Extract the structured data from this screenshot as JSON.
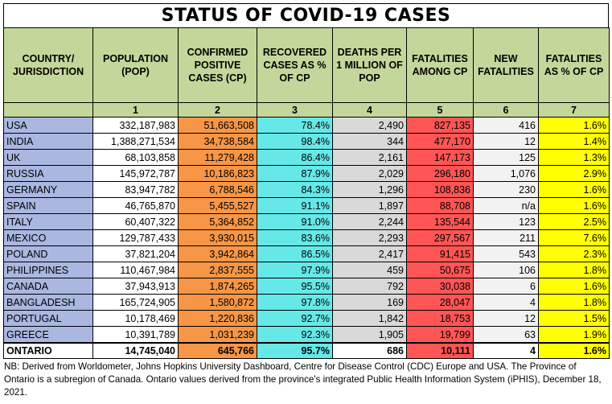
{
  "title": "STATUS OF COVID-19 CASES",
  "headers": [
    "COUNTRY/ JURISDICTION",
    "POPULATION (POP)",
    "CONFIRMED POSITIVE CASES (CP)",
    "RECOVERED CASES AS % OF CP",
    "DEATHS PER 1 MILLION OF POP",
    "FATALITIES AMONG CP",
    "NEW FATALITIES",
    "FATALITIES AS % OF CP"
  ],
  "column_numbers": [
    "",
    "1",
    "2",
    "3",
    "4",
    "5",
    "6",
    "7"
  ],
  "rows": [
    [
      "USA",
      "332,187,983",
      "51,663,508",
      "78.4%",
      "2,490",
      "827,135",
      "416",
      "1.6%"
    ],
    [
      "INDIA",
      "1,388,271,534",
      "34,738,584",
      "98.4%",
      "344",
      "477,170",
      "12",
      "1.4%"
    ],
    [
      "UK",
      "68,103,858",
      "11,279,428",
      "86.4%",
      "2,161",
      "147,173",
      "125",
      "1.3%"
    ],
    [
      "RUSSIA",
      "145,972,787",
      "10,186,823",
      "87.9%",
      "2,029",
      "296,180",
      "1,076",
      "2.9%"
    ],
    [
      "GERMANY",
      "83,947,782",
      "6,788,546",
      "84.3%",
      "1,296",
      "108,836",
      "230",
      "1.6%"
    ],
    [
      "SPAIN",
      "46,765,870",
      "5,455,527",
      "91.1%",
      "1,897",
      "88,708",
      "n/a",
      "1.6%"
    ],
    [
      "ITALY",
      "60,407,322",
      "5,364,852",
      "91.0%",
      "2,244",
      "135,544",
      "123",
      "2.5%"
    ],
    [
      "MEXICO",
      "129,787,433",
      "3,930,015",
      "83.6%",
      "2,293",
      "297,567",
      "211",
      "7.6%"
    ],
    [
      "POLAND",
      "37,821,204",
      "3,942,864",
      "86.5%",
      "2,417",
      "91,415",
      "543",
      "2.3%"
    ],
    [
      "PHILIPPINES",
      "110,467,984",
      "2,837,555",
      "97.9%",
      "459",
      "50,675",
      "106",
      "1.8%"
    ],
    [
      "CANADA",
      "37,943,913",
      "1,874,265",
      "95.5%",
      "792",
      "30,038",
      "6",
      "1.6%"
    ],
    [
      "BANGLADESH",
      "165,724,905",
      "1,580,872",
      "97.8%",
      "169",
      "28,047",
      "4",
      "1.8%"
    ],
    [
      "PORTUGAL",
      "10,178,469",
      "1,220,836",
      "92.7%",
      "1,842",
      "18,753",
      "12",
      "1.5%"
    ],
    [
      "GREECE",
      "10,391,789",
      "1,031,239",
      "92.3%",
      "1,905",
      "19,799",
      "63",
      "1.9%"
    ]
  ],
  "ontario": [
    "ONTARIO",
    "14,745,040",
    "645,766",
    "95.7%",
    "686",
    "10,111",
    "4",
    "1.6%"
  ],
  "note": "NB: Derived from Worldometer, Johns Hopkins University Dashboard, Centre for Disease Control (CDC) Europe and USA. The Province of Ontario is a subregion of Canada. Ontario values derived from the province's integrated Public Health Information System (iPHIS), December 18, 2021.",
  "colors": {
    "header_green": "#c4d79b",
    "country_blue": "#a9b7e1",
    "confirmed_orange": "#f79646",
    "recovered_cyan": "#66e8e8",
    "deaths_gray": "#d9d9d9",
    "fatalities_red": "#ff5555",
    "pct_yellow": "#ffff00"
  }
}
